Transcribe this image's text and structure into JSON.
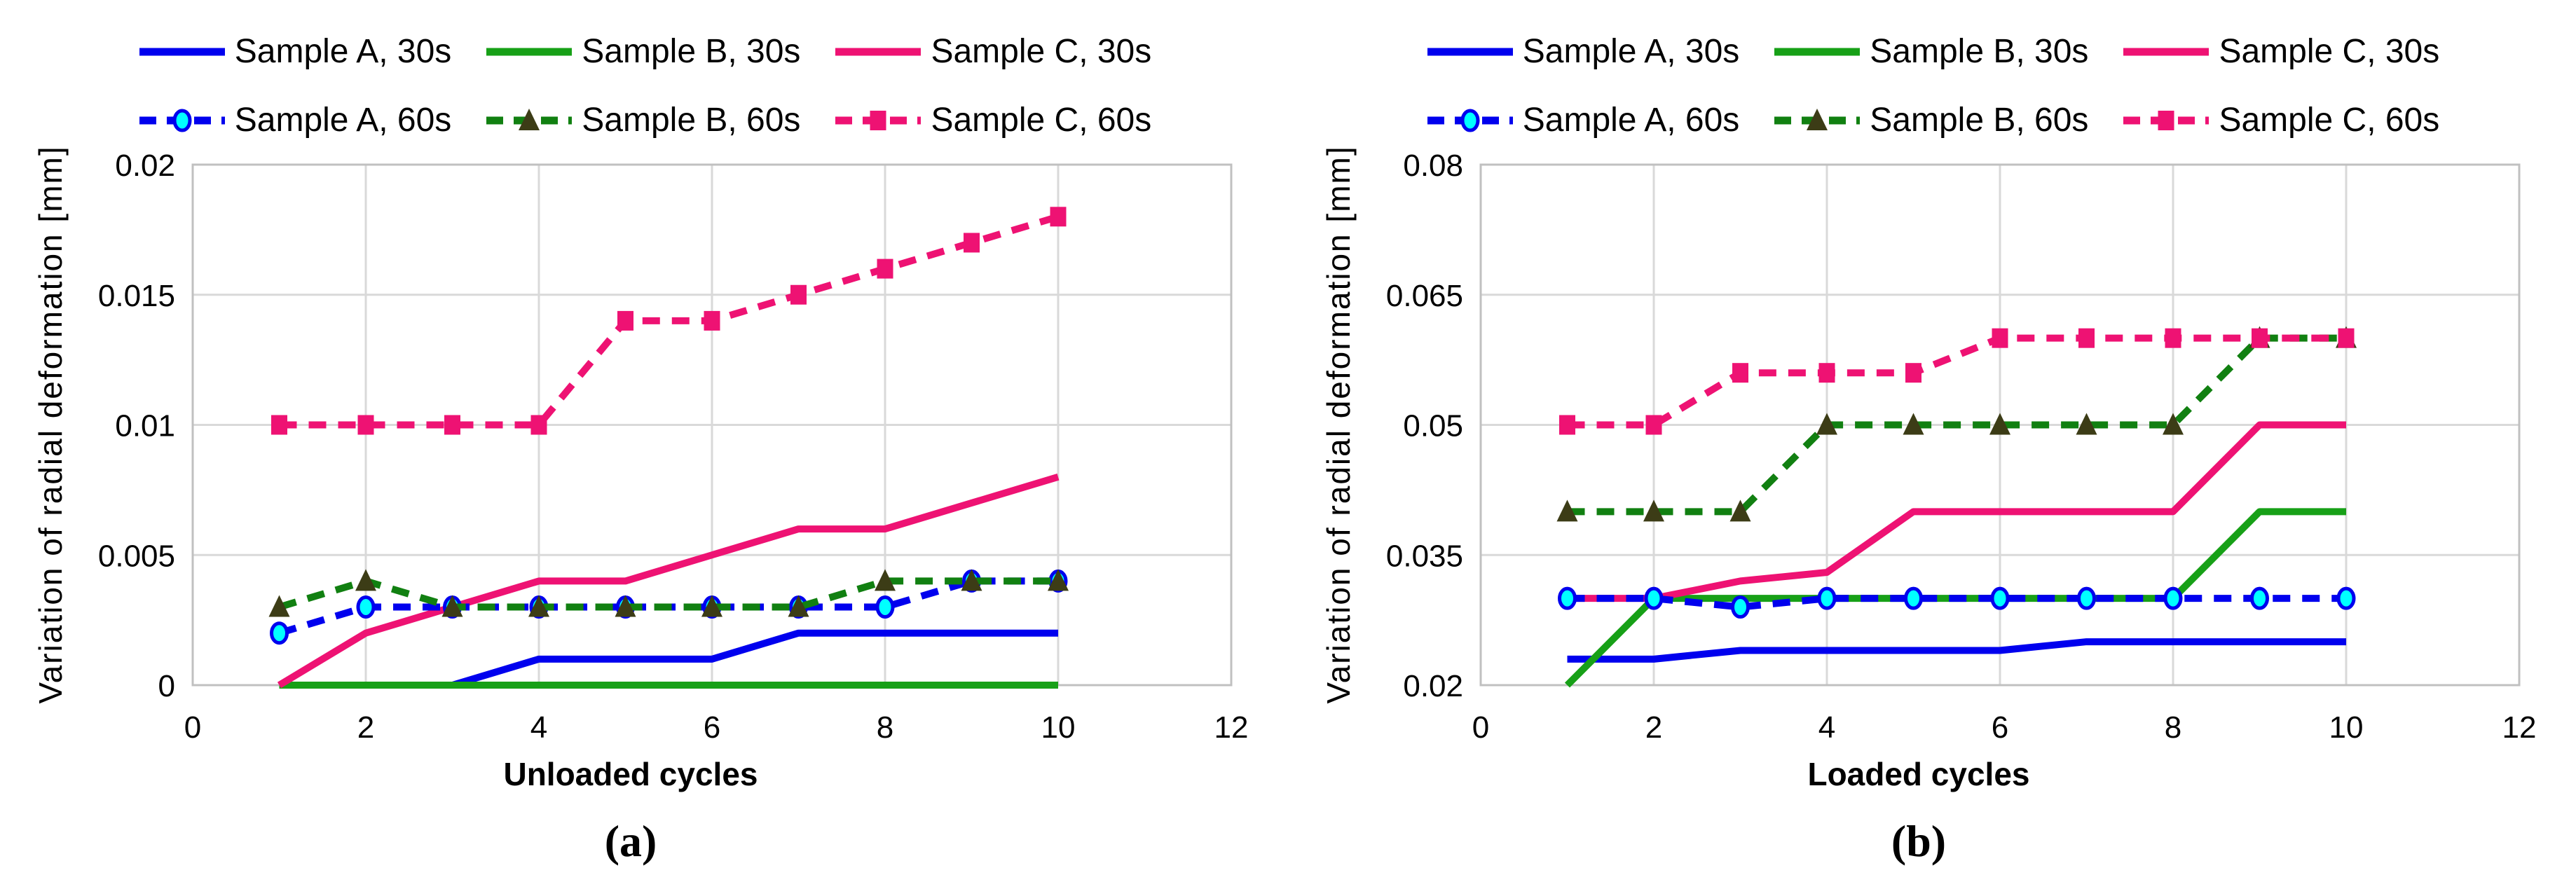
{
  "figure": {
    "background": "#ffffff",
    "grid_color": "#d9d9d9",
    "border_color": "#c0c0c0",
    "text_color": "#000000"
  },
  "chart_data": [
    {
      "id": "a",
      "type": "line",
      "caption": "(a)",
      "xlabel": "Unloaded cycles",
      "ylabel": "Variation of radial deformation [mm]",
      "xlim": [
        0,
        12
      ],
      "ylim": [
        0,
        0.02
      ],
      "xticks": [
        0,
        2,
        4,
        6,
        8,
        10,
        12
      ],
      "xtick_labels": [
        "0",
        "2",
        "4",
        "6",
        "8",
        "10",
        "12"
      ],
      "yticks": [
        0,
        0.005,
        0.01,
        0.015,
        0.02
      ],
      "ytick_labels": [
        "0",
        "0.005",
        "0.01",
        "0.015",
        "0.02"
      ],
      "grid": true,
      "legend_position": "top",
      "x": [
        1,
        2,
        3,
        4,
        5,
        6,
        7,
        8,
        9,
        10
      ],
      "series": [
        {
          "name": "Sample A, 30s",
          "color": "#0000ee",
          "dash": false,
          "marker": "none",
          "values": [
            0,
            0,
            0,
            0.001,
            0.001,
            0.001,
            0.002,
            0.002,
            0.002,
            0.002
          ]
        },
        {
          "name": "Sample B, 30s",
          "color": "#17a017",
          "dash": false,
          "marker": "none",
          "values": [
            0,
            0,
            0,
            0,
            0,
            0,
            0,
            0,
            0,
            0
          ]
        },
        {
          "name": "Sample C, 30s",
          "color": "#ee1273",
          "dash": false,
          "marker": "none",
          "values": [
            0,
            0.002,
            0.003,
            0.004,
            0.004,
            0.005,
            0.006,
            0.006,
            0.007,
            0.008
          ]
        },
        {
          "name": "Sample A, 60s",
          "color": "#0000ee",
          "dash": true,
          "marker": "circle",
          "marker_fill": "#00ffff",
          "values": [
            0.002,
            0.003,
            0.003,
            0.003,
            0.003,
            0.003,
            0.003,
            0.003,
            0.004,
            0.004
          ]
        },
        {
          "name": "Sample B, 60s",
          "color": "#118011",
          "dash": true,
          "marker": "triangle",
          "marker_fill": "#3c3c16",
          "values": [
            0.003,
            0.004,
            0.003,
            0.003,
            0.003,
            0.003,
            0.003,
            0.004,
            0.004,
            0.004
          ]
        },
        {
          "name": "Sample C, 60s",
          "color": "#ee1273",
          "dash": true,
          "marker": "square",
          "marker_fill": "#ee1273",
          "values": [
            0.01,
            0.01,
            0.01,
            0.01,
            0.014,
            0.014,
            0.015,
            0.016,
            0.017,
            0.018
          ]
        }
      ]
    },
    {
      "id": "b",
      "type": "line",
      "caption": "(b)",
      "xlabel": "Loaded cycles",
      "ylabel": "Variation of radial deformation [mm]",
      "xlim": [
        0,
        12
      ],
      "ylim": [
        0.02,
        0.08
      ],
      "xticks": [
        0,
        2,
        4,
        6,
        8,
        10,
        12
      ],
      "xtick_labels": [
        "0",
        "2",
        "4",
        "6",
        "8",
        "10",
        "12"
      ],
      "yticks": [
        0.02,
        0.035,
        0.05,
        0.065,
        0.08
      ],
      "ytick_labels": [
        "0.02",
        "0.035",
        "0.05",
        "0.065",
        "0.08"
      ],
      "grid": true,
      "legend_position": "top",
      "x": [
        1,
        2,
        3,
        4,
        5,
        6,
        7,
        8,
        9,
        10
      ],
      "series": [
        {
          "name": "Sample A, 30s",
          "color": "#0000ee",
          "dash": false,
          "marker": "none",
          "values": [
            0.023,
            0.023,
            0.024,
            0.024,
            0.024,
            0.024,
            0.025,
            0.025,
            0.025,
            0.025
          ]
        },
        {
          "name": "Sample B, 30s",
          "color": "#17a017",
          "dash": false,
          "marker": "none",
          "values": [
            0.02,
            0.03,
            0.03,
            0.03,
            0.03,
            0.03,
            0.03,
            0.03,
            0.04,
            0.04
          ]
        },
        {
          "name": "Sample C, 30s",
          "color": "#ee1273",
          "dash": false,
          "marker": "none",
          "values": [
            0.03,
            0.03,
            0.032,
            0.033,
            0.04,
            0.04,
            0.04,
            0.04,
            0.05,
            0.05
          ]
        },
        {
          "name": "Sample A, 60s",
          "color": "#0000ee",
          "dash": true,
          "marker": "circle",
          "marker_fill": "#00ffff",
          "values": [
            0.03,
            0.03,
            0.029,
            0.03,
            0.03,
            0.03,
            0.03,
            0.03,
            0.03,
            0.03
          ]
        },
        {
          "name": "Sample B, 60s",
          "color": "#118011",
          "dash": true,
          "marker": "triangle",
          "marker_fill": "#3c3c16",
          "values": [
            0.04,
            0.04,
            0.04,
            0.05,
            0.05,
            0.05,
            0.05,
            0.05,
            0.06,
            0.06
          ]
        },
        {
          "name": "Sample C, 60s",
          "color": "#ee1273",
          "dash": true,
          "marker": "square",
          "marker_fill": "#ee1273",
          "values": [
            0.05,
            0.05,
            0.056,
            0.056,
            0.056,
            0.06,
            0.06,
            0.06,
            0.06,
            0.06
          ]
        }
      ]
    }
  ]
}
